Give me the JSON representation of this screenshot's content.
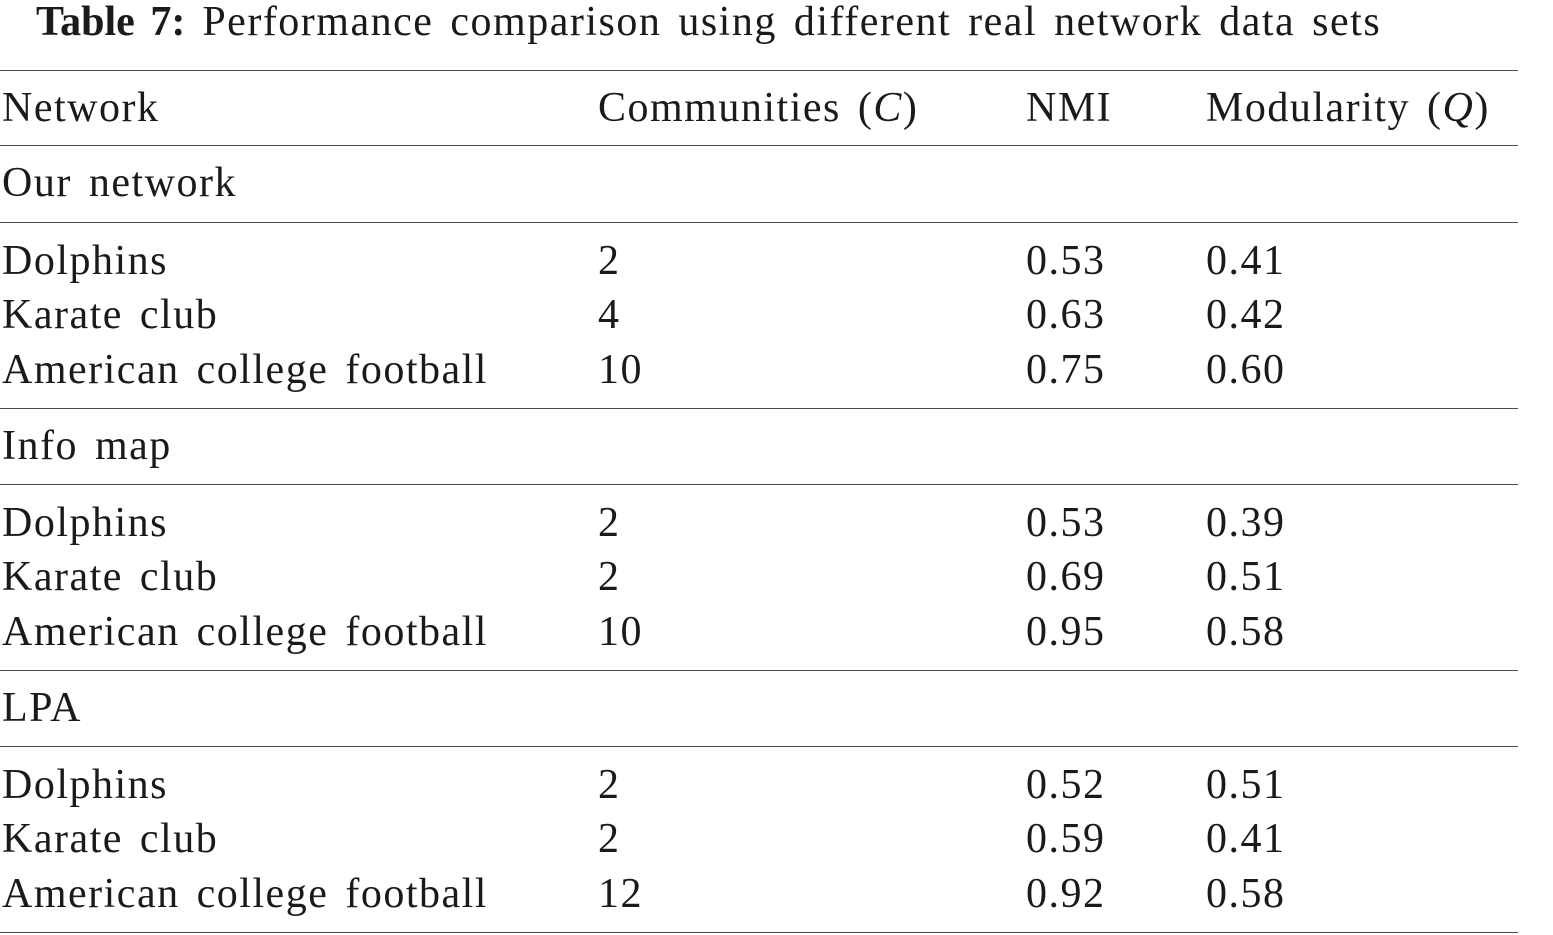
{
  "caption": {
    "label": "Table 7:",
    "text": "Performance comparison using different real network data sets"
  },
  "header": {
    "network": "Network",
    "communities": "Communities (",
    "communities_var": "C",
    "communities_close": ")",
    "nmi": "NMI",
    "modularity": "Modularity (",
    "modularity_var": "Q",
    "modularity_close": ")"
  },
  "groups": [
    {
      "name": "Our network",
      "rows": [
        {
          "network": "Dolphins",
          "communities": "2",
          "nmi": "0.53",
          "modularity": "0.41"
        },
        {
          "network": "Karate club",
          "communities": "4",
          "nmi": "0.63",
          "modularity": "0.42"
        },
        {
          "network": "American college football",
          "communities": "10",
          "nmi": "0.75",
          "modularity": "0.60"
        }
      ]
    },
    {
      "name": "Info map",
      "rows": [
        {
          "network": "Dolphins",
          "communities": "2",
          "nmi": "0.53",
          "modularity": "0.39"
        },
        {
          "network": "Karate club",
          "communities": "2",
          "nmi": "0.69",
          "modularity": "0.51"
        },
        {
          "network": "American college football",
          "communities": "10",
          "nmi": "0.95",
          "modularity": "0.58"
        }
      ]
    },
    {
      "name": "LPA",
      "rows": [
        {
          "network": "Dolphins",
          "communities": "2",
          "nmi": "0.52",
          "modularity": "0.51"
        },
        {
          "network": "Karate club",
          "communities": "2",
          "nmi": "0.59",
          "modularity": "0.41"
        },
        {
          "network": "American college football",
          "communities": "12",
          "nmi": "0.92",
          "modularity": "0.58"
        }
      ]
    }
  ]
}
